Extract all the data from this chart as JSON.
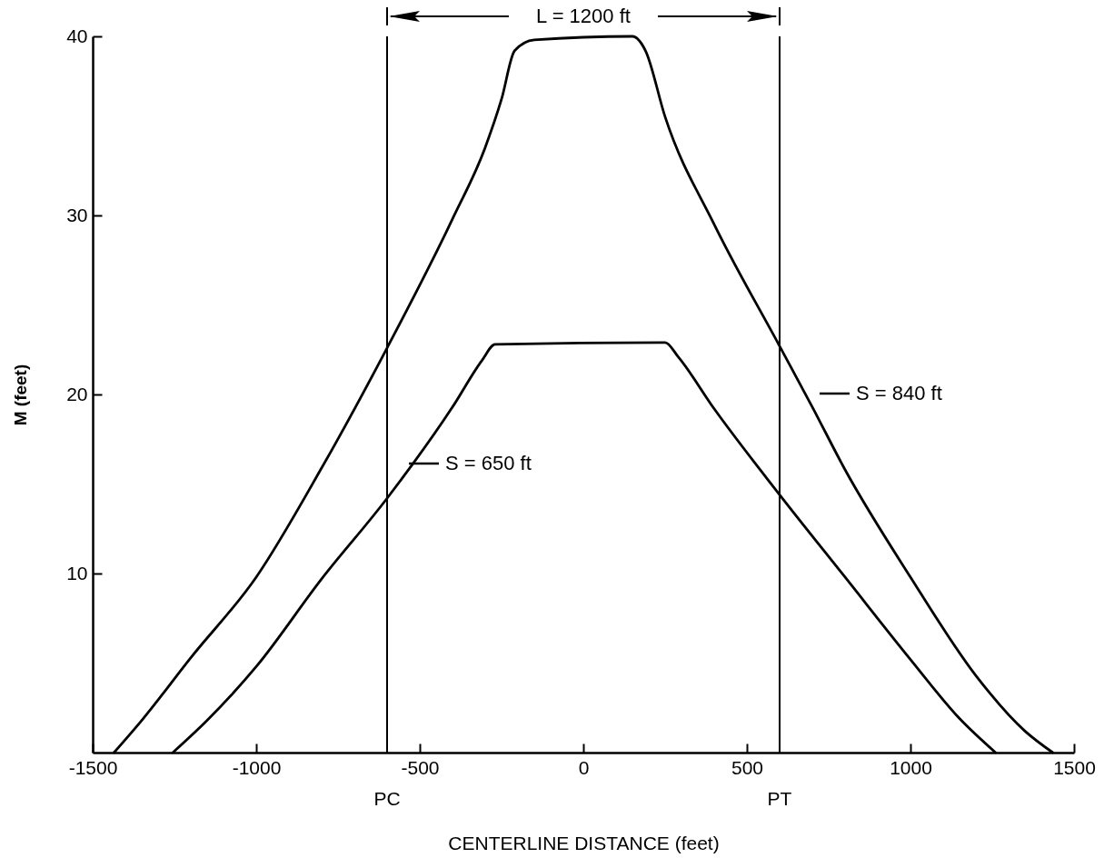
{
  "chart_data": {
    "type": "line",
    "xlabel": "CENTERLINE DISTANCE (feet)",
    "ylabel": "M (feet)",
    "xlim": [
      -1500,
      1500
    ],
    "xticks": [
      -1500,
      -1000,
      -500,
      0,
      500,
      1000,
      1500
    ],
    "ylim": [
      0,
      40
    ],
    "yticks": [
      10,
      20,
      30,
      40
    ],
    "grid": false,
    "legend": "right",
    "series": [
      {
        "name": "S = 840 ft",
        "color": "#000000",
        "x": [
          -1435,
          -1350,
          -1200,
          -1000,
          -800,
          -600,
          -400,
          -300,
          -250,
          -210,
          -150,
          150,
          190,
          250,
          400,
          600,
          700,
          800,
          1000,
          1200,
          1350,
          1435
        ],
        "values": [
          0,
          1.8,
          5.3,
          9.8,
          15.9,
          22.6,
          29.8,
          33.8,
          36.5,
          39.2,
          39.8,
          40,
          39.2,
          35.5,
          29.5,
          22.7,
          19.3,
          15.8,
          9.8,
          4.3,
          1.2,
          0
        ]
      },
      {
        "name": "S = 650 ft",
        "color": "#000000",
        "x": [
          -1255,
          -1150,
          -1000,
          -800,
          -600,
          -400,
          -310,
          -270,
          250,
          290,
          400,
          600,
          800,
          1000,
          1150,
          1260
        ],
        "values": [
          0,
          1.8,
          4.8,
          9.7,
          14.2,
          19.3,
          21.9,
          22.8,
          22.9,
          22.1,
          19.2,
          14.4,
          9.8,
          5.2,
          1.9,
          0
        ]
      }
    ],
    "ref_lines": [
      {
        "axis": "x",
        "value": -600,
        "label": "PC",
        "color": "#000000"
      },
      {
        "axis": "x",
        "value": 600,
        "label": "PT",
        "color": "#000000"
      }
    ],
    "annotations": [
      "L = 1200 ft"
    ]
  }
}
